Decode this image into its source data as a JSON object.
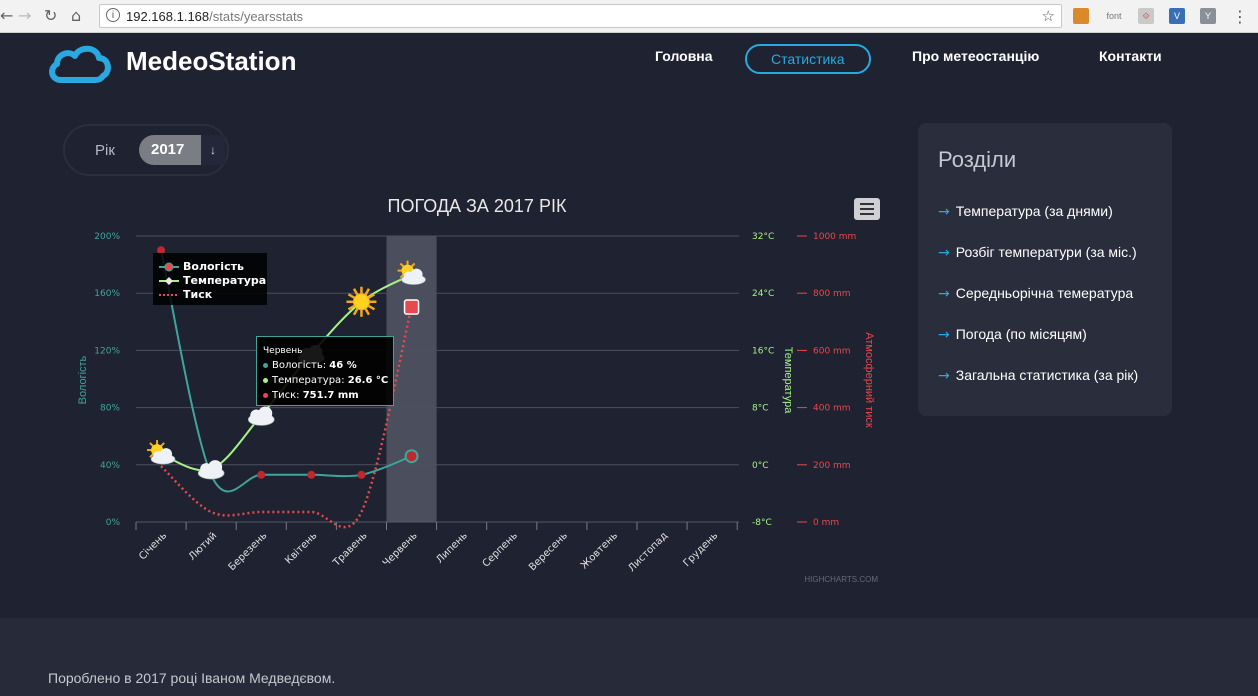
{
  "browser": {
    "url_host": "192.168.1.168",
    "url_path": "/stats/yearsstats",
    "ext_font_label": "font",
    "ext_y_label": "Y"
  },
  "header": {
    "brand": "MedeoStation",
    "nav": [
      {
        "label": "Головна"
      },
      {
        "label": "Статистика",
        "active": true
      },
      {
        "label": "Про метеостанцію"
      },
      {
        "label": "Контакти"
      }
    ]
  },
  "year_selector": {
    "label": "Рік",
    "value": "2017",
    "arrow": "↓"
  },
  "chart_menu": "chart-context-menu-icon",
  "sidebar": {
    "title": "Розділи",
    "links": [
      "Температура (за днями)",
      "Розбіг температури (за міс.)",
      "Середньорічна темература",
      "Погода (по місяцям)",
      "Загальна статистика (за рік)"
    ]
  },
  "tooltip": {
    "title": "Червень",
    "rows": [
      {
        "label": "Вологість:",
        "value": "46 %",
        "color": "#3fa59a"
      },
      {
        "label": "Температура:",
        "value": "26.6 °C",
        "color": "#a6f28a"
      },
      {
        "label": "Тиск:",
        "value": "751.7 mm",
        "color": "#e8484f"
      }
    ]
  },
  "chart_data": {
    "type": "line",
    "title": "ПОГОДА ЗА 2017 РІК",
    "credits": "HIGHCHARTS.COM",
    "categories": [
      "Січень",
      "Лютий",
      "Березень",
      "Квітень",
      "Травень",
      "Червень",
      "Липень",
      "Серпень",
      "Вересень",
      "Жовтень",
      "Листопад",
      "Грудень"
    ],
    "highlight_category": "Червень",
    "axes": {
      "humidity": {
        "title": "Вологість",
        "ticks": [
          "0%",
          "40%",
          "80%",
          "120%",
          "160%",
          "200%"
        ],
        "min": 0,
        "max": 200,
        "color": "#3fa59a"
      },
      "temperature": {
        "title": "Температура",
        "ticks": [
          "-8°C",
          "0°C",
          "8°C",
          "16°C",
          "24°C",
          "32°C"
        ],
        "min": -8,
        "max": 32,
        "color": "#a6f28a"
      },
      "pressure": {
        "title": "Атмосферний тиск",
        "ticks": [
          "0 mm",
          "200 mm",
          "400 mm",
          "600 mm",
          "800 mm",
          "1000 mm"
        ],
        "min": 0,
        "max": 1000,
        "color": "#e8484f"
      }
    },
    "series": [
      {
        "name": "Вологість",
        "axis": "humidity",
        "color": "#3fa59a",
        "values": [
          190,
          33,
          33,
          33,
          33,
          46,
          null,
          null,
          null,
          null,
          null,
          null
        ]
      },
      {
        "name": "Температура",
        "axis": "temperature",
        "color": "#a6f28a",
        "values": [
          1.5,
          -0.6,
          6.9,
          15.5,
          22.8,
          26.6,
          null,
          null,
          null,
          null,
          null,
          null
        ],
        "markers": [
          "partly-cloudy-icon",
          "cloudy-icon",
          "cloudy-icon",
          "cloudy-icon",
          "sunny-icon",
          "partly-cloudy-icon"
        ]
      },
      {
        "name": "Тиск",
        "axis": "pressure",
        "color": "#e8484f",
        "dashed": true,
        "values": [
          195,
          35,
          35,
          35,
          35,
          751.7,
          null,
          null,
          null,
          null,
          null,
          null
        ]
      }
    ],
    "grid": true,
    "legend": "top-left"
  },
  "footer": {
    "text": "Поробленo в 2017 році Іваном Медведєвом."
  }
}
